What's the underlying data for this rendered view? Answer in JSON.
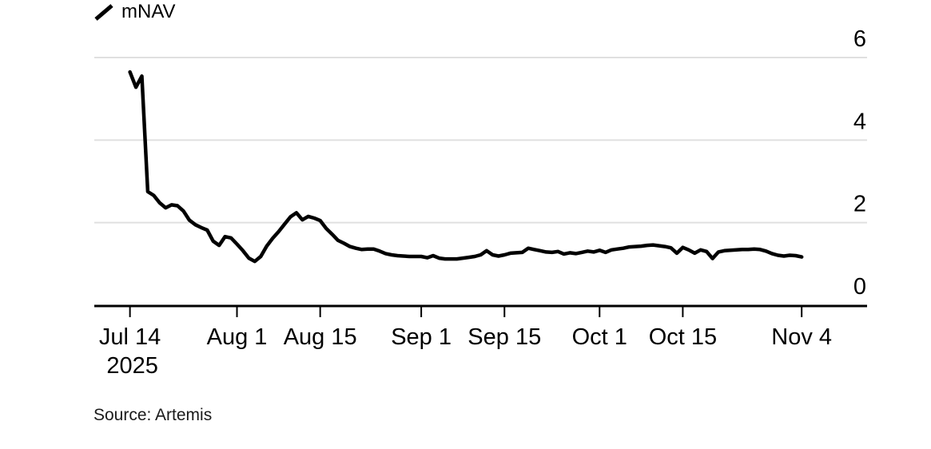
{
  "legend": {
    "label": "mNAV",
    "marker": "slash",
    "color": "#000000"
  },
  "source_label": "Source: Artemis",
  "colors": {
    "background": "#ffffff",
    "line": "#000000",
    "axis": "#000000",
    "grid": "#e0e0e0",
    "tick_text": "#000000",
    "source_text": "#1a1a1a"
  },
  "chart_data": {
    "type": "line",
    "title": "",
    "xlabel": "",
    "ylabel": "",
    "grid": "horizontal",
    "legend_position": "top-left",
    "ylim": [
      0,
      6
    ],
    "xlim": [
      "2025-07-08",
      "2025-11-15"
    ],
    "y_ticks": [
      0,
      2,
      4,
      6
    ],
    "x_ticks": [
      {
        "date": "2025-07-14",
        "label": "Jul 14",
        "sublabel": "2025"
      },
      {
        "date": "2025-08-01",
        "label": "Aug 1",
        "sublabel": ""
      },
      {
        "date": "2025-08-15",
        "label": "Aug 15",
        "sublabel": ""
      },
      {
        "date": "2025-09-01",
        "label": "Sep 1",
        "sublabel": ""
      },
      {
        "date": "2025-09-15",
        "label": "Sep 15",
        "sublabel": ""
      },
      {
        "date": "2025-10-01",
        "label": "Oct 1",
        "sublabel": ""
      },
      {
        "date": "2025-10-15",
        "label": "Oct 15",
        "sublabel": ""
      },
      {
        "date": "2025-11-04",
        "label": "Nov 4",
        "sublabel": ""
      }
    ],
    "series": [
      {
        "name": "mNAV",
        "color": "#000000",
        "points": [
          [
            "2025-07-14",
            5.65
          ],
          [
            "2025-07-15",
            5.28
          ],
          [
            "2025-07-16",
            5.55
          ],
          [
            "2025-07-17",
            2.75
          ],
          [
            "2025-07-18",
            2.66
          ],
          [
            "2025-07-19",
            2.48
          ],
          [
            "2025-07-20",
            2.36
          ],
          [
            "2025-07-21",
            2.43
          ],
          [
            "2025-07-22",
            2.41
          ],
          [
            "2025-07-23",
            2.28
          ],
          [
            "2025-07-24",
            2.06
          ],
          [
            "2025-07-25",
            1.95
          ],
          [
            "2025-07-26",
            1.88
          ],
          [
            "2025-07-27",
            1.82
          ],
          [
            "2025-07-28",
            1.55
          ],
          [
            "2025-07-29",
            1.45
          ],
          [
            "2025-07-30",
            1.66
          ],
          [
            "2025-07-31",
            1.63
          ],
          [
            "2025-08-01",
            1.48
          ],
          [
            "2025-08-02",
            1.32
          ],
          [
            "2025-08-03",
            1.14
          ],
          [
            "2025-08-04",
            1.06
          ],
          [
            "2025-08-05",
            1.18
          ],
          [
            "2025-08-06",
            1.43
          ],
          [
            "2025-08-07",
            1.62
          ],
          [
            "2025-08-08",
            1.78
          ],
          [
            "2025-08-09",
            1.96
          ],
          [
            "2025-08-10",
            2.14
          ],
          [
            "2025-08-11",
            2.24
          ],
          [
            "2025-08-12",
            2.07
          ],
          [
            "2025-08-13",
            2.15
          ],
          [
            "2025-08-14",
            2.11
          ],
          [
            "2025-08-15",
            2.05
          ],
          [
            "2025-08-16",
            1.86
          ],
          [
            "2025-08-17",
            1.72
          ],
          [
            "2025-08-18",
            1.57
          ],
          [
            "2025-08-19",
            1.5
          ],
          [
            "2025-08-20",
            1.42
          ],
          [
            "2025-08-21",
            1.38
          ],
          [
            "2025-08-22",
            1.35
          ],
          [
            "2025-08-23",
            1.36
          ],
          [
            "2025-08-24",
            1.36
          ],
          [
            "2025-08-25",
            1.31
          ],
          [
            "2025-08-26",
            1.25
          ],
          [
            "2025-08-27",
            1.22
          ],
          [
            "2025-08-28",
            1.2
          ],
          [
            "2025-08-29",
            1.19
          ],
          [
            "2025-08-30",
            1.18
          ],
          [
            "2025-08-31",
            1.18
          ],
          [
            "2025-09-01",
            1.18
          ],
          [
            "2025-09-02",
            1.15
          ],
          [
            "2025-09-03",
            1.2
          ],
          [
            "2025-09-04",
            1.14
          ],
          [
            "2025-09-05",
            1.12
          ],
          [
            "2025-09-06",
            1.12
          ],
          [
            "2025-09-07",
            1.12
          ],
          [
            "2025-09-08",
            1.14
          ],
          [
            "2025-09-09",
            1.16
          ],
          [
            "2025-09-10",
            1.18
          ],
          [
            "2025-09-11",
            1.22
          ],
          [
            "2025-09-12",
            1.32
          ],
          [
            "2025-09-13",
            1.22
          ],
          [
            "2025-09-14",
            1.19
          ],
          [
            "2025-09-15",
            1.22
          ],
          [
            "2025-09-16",
            1.26
          ],
          [
            "2025-09-17",
            1.27
          ],
          [
            "2025-09-18",
            1.28
          ],
          [
            "2025-09-19",
            1.38
          ],
          [
            "2025-09-20",
            1.35
          ],
          [
            "2025-09-21",
            1.32
          ],
          [
            "2025-09-22",
            1.29
          ],
          [
            "2025-09-23",
            1.28
          ],
          [
            "2025-09-24",
            1.3
          ],
          [
            "2025-09-25",
            1.24
          ],
          [
            "2025-09-26",
            1.27
          ],
          [
            "2025-09-27",
            1.25
          ],
          [
            "2025-09-28",
            1.28
          ],
          [
            "2025-09-29",
            1.31
          ],
          [
            "2025-09-30",
            1.29
          ],
          [
            "2025-10-01",
            1.33
          ],
          [
            "2025-10-02",
            1.28
          ],
          [
            "2025-10-03",
            1.34
          ],
          [
            "2025-10-04",
            1.36
          ],
          [
            "2025-10-05",
            1.38
          ],
          [
            "2025-10-06",
            1.41
          ],
          [
            "2025-10-07",
            1.42
          ],
          [
            "2025-10-08",
            1.43
          ],
          [
            "2025-10-09",
            1.45
          ],
          [
            "2025-10-10",
            1.46
          ],
          [
            "2025-10-11",
            1.44
          ],
          [
            "2025-10-12",
            1.42
          ],
          [
            "2025-10-13",
            1.39
          ],
          [
            "2025-10-14",
            1.26
          ],
          [
            "2025-10-15",
            1.4
          ],
          [
            "2025-10-16",
            1.34
          ],
          [
            "2025-10-17",
            1.26
          ],
          [
            "2025-10-18",
            1.34
          ],
          [
            "2025-10-19",
            1.3
          ],
          [
            "2025-10-20",
            1.13
          ],
          [
            "2025-10-21",
            1.29
          ],
          [
            "2025-10-22",
            1.32
          ],
          [
            "2025-10-23",
            1.33
          ],
          [
            "2025-10-24",
            1.34
          ],
          [
            "2025-10-25",
            1.35
          ],
          [
            "2025-10-26",
            1.35
          ],
          [
            "2025-10-27",
            1.36
          ],
          [
            "2025-10-28",
            1.35
          ],
          [
            "2025-10-29",
            1.31
          ],
          [
            "2025-10-30",
            1.25
          ],
          [
            "2025-10-31",
            1.21
          ],
          [
            "2025-11-01",
            1.19
          ],
          [
            "2025-11-02",
            1.21
          ],
          [
            "2025-11-03",
            1.2
          ],
          [
            "2025-11-04",
            1.17
          ]
        ]
      }
    ]
  }
}
